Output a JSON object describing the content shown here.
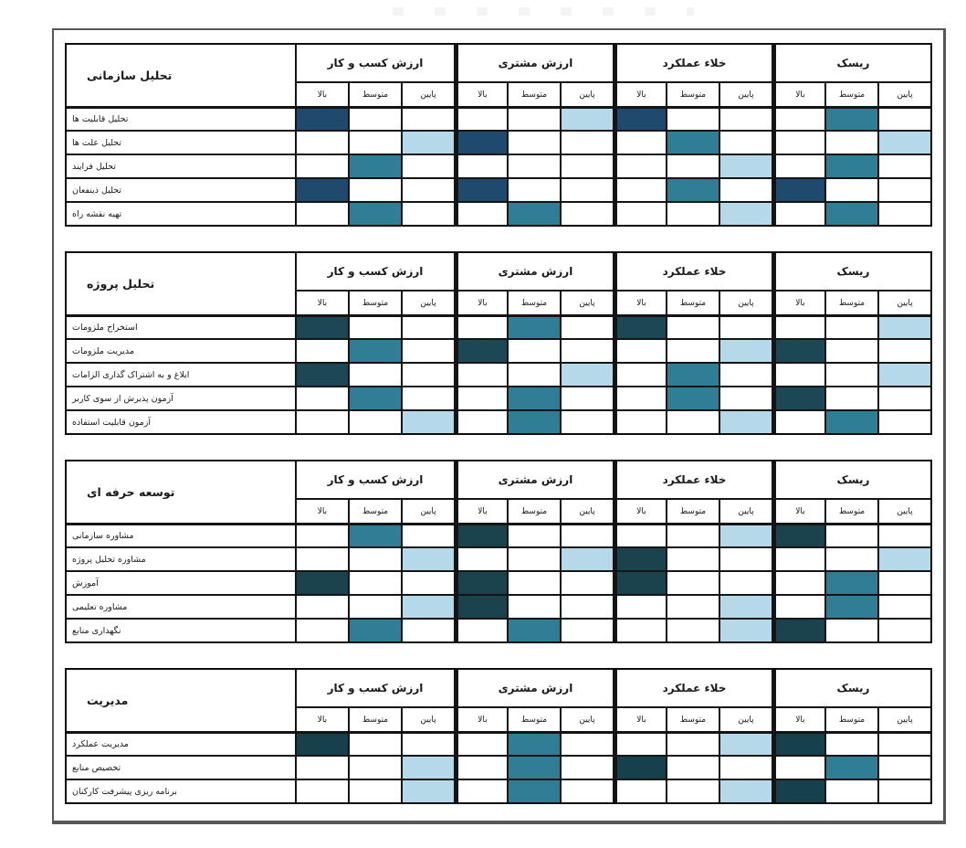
{
  "palette": {
    "medium": "#2f7e96",
    "low": "#b5d9e9",
    "grid": "#141414",
    "frame_border": "#54585d"
  },
  "column_groups": [
    "ارزش کسب و کار",
    "ارزش مشتری",
    "خلاء عملکرد",
    "ریسک"
  ],
  "sub_columns": [
    "بالا",
    "متوسط",
    "پایین"
  ],
  "tables": [
    {
      "title": "تحلیل سازمانی",
      "high_color": "#1f4a6e",
      "rows": [
        {
          "label": "تحلیل قابلیت ها",
          "cells": [
            "h",
            "",
            "",
            "",
            "",
            "l",
            "h",
            "",
            "",
            "",
            "m",
            ""
          ]
        },
        {
          "label": "تحلیل علت ها",
          "cells": [
            "",
            "",
            "l",
            "h",
            "",
            "",
            "",
            "m",
            "",
            "",
            "",
            "l"
          ]
        },
        {
          "label": "تحلیل فرایند",
          "cells": [
            "",
            "m",
            "",
            "",
            "",
            "",
            "",
            "",
            "l",
            "",
            "m",
            ""
          ]
        },
        {
          "label": "تحلیل ذینفعان",
          "cells": [
            "h",
            "",
            "",
            "h",
            "",
            "",
            "",
            "m",
            "",
            "h",
            "",
            ""
          ]
        },
        {
          "label": "تهیه نقشه راه",
          "cells": [
            "",
            "m",
            "",
            "",
            "m",
            "",
            "",
            "",
            "l",
            "",
            "m",
            ""
          ]
        }
      ]
    },
    {
      "title": "تحلیل پروژه",
      "high_color": "#1c4754",
      "rows": [
        {
          "label": "استخراج ملزومات",
          "cells": [
            "h",
            "",
            "",
            "",
            "m",
            "",
            "h",
            "",
            "",
            "",
            "",
            "l"
          ]
        },
        {
          "label": "مدیریت ملزومات",
          "cells": [
            "",
            "m",
            "",
            "h",
            "",
            "",
            "",
            "",
            "l",
            "h",
            "",
            ""
          ]
        },
        {
          "label": "ابلاغ و به اشتراک گذاری الزامات",
          "cells": [
            "h",
            "",
            "",
            "",
            "",
            "l",
            "",
            "m",
            "",
            "",
            "",
            "l"
          ]
        },
        {
          "label": "آزمون پذیرش از سوی کاربر",
          "cells": [
            "",
            "m",
            "",
            "",
            "m",
            "",
            "",
            "m",
            "",
            "h",
            "",
            ""
          ]
        },
        {
          "label": "آزمون قابلیت استفاده",
          "cells": [
            "",
            "",
            "l",
            "",
            "m",
            "",
            "",
            "",
            "l",
            "",
            "m",
            ""
          ]
        }
      ]
    },
    {
      "title": "توسعه حرفه ای",
      "high_color": "#1b434e",
      "rows": [
        {
          "label": "مشاوره سازمانی",
          "cells": [
            "",
            "m",
            "",
            "h",
            "",
            "",
            "",
            "",
            "l",
            "h",
            "",
            ""
          ]
        },
        {
          "label": "مشاوره تحلیل پروژه",
          "cells": [
            "",
            "",
            "l",
            "",
            "",
            "l",
            "h",
            "",
            "",
            "",
            "",
            "l"
          ]
        },
        {
          "label": "آموزش",
          "cells": [
            "h",
            "",
            "",
            "h",
            "",
            "",
            "h",
            "",
            "",
            "",
            "m",
            ""
          ]
        },
        {
          "label": "مشاوره تعلیمی",
          "cells": [
            "",
            "",
            "l",
            "h",
            "",
            "",
            "",
            "",
            "l",
            "",
            "m",
            ""
          ]
        },
        {
          "label": "نگهداری منابع",
          "cells": [
            "",
            "m",
            "",
            "",
            "m",
            "",
            "",
            "",
            "l",
            "h",
            "",
            ""
          ]
        }
      ]
    },
    {
      "title": "مدیریت",
      "high_color": "#17404d",
      "rows": [
        {
          "label": "مدیریت عملکرد",
          "cells": [
            "h",
            "",
            "",
            "",
            "m",
            "",
            "",
            "",
            "l",
            "h",
            "",
            ""
          ]
        },
        {
          "label": "تخصیص منابع",
          "cells": [
            "",
            "",
            "l",
            "",
            "m",
            "",
            "h",
            "",
            "",
            "",
            "m",
            ""
          ]
        },
        {
          "label": "برنامه ریزی پیشرفت کارکنان",
          "cells": [
            "",
            "",
            "l",
            "",
            "m",
            "",
            "",
            "",
            "l",
            "h",
            "",
            ""
          ]
        }
      ]
    }
  ],
  "chart_data": [
    {
      "type": "heatmap",
      "title": "تحلیل سازمانی",
      "columns": [
        "ارزش کسب و کار - بالا",
        "ارزش کسب و کار - متوسط",
        "ارزش کسب و کار - پایین",
        "ارزش مشتری - بالا",
        "ارزش مشتری - متوسط",
        "ارزش مشتری - پایین",
        "خلاء عملکرد - بالا",
        "خلاء عملکرد - متوسط",
        "خلاء عملکرد - پایین",
        "ریسک - بالا",
        "ریسک - متوسط",
        "ریسک - پایین"
      ],
      "rows": [
        "تحلیل قابلیت ها",
        "تحلیل علت ها",
        "تحلیل فرایند",
        "تحلیل ذینفعان",
        "تهیه نقشه راه"
      ],
      "values": [
        [
          3,
          0,
          0,
          0,
          0,
          1,
          3,
          0,
          0,
          0,
          2,
          0
        ],
        [
          0,
          0,
          1,
          3,
          0,
          0,
          0,
          2,
          0,
          0,
          0,
          1
        ],
        [
          0,
          2,
          0,
          0,
          0,
          0,
          0,
          0,
          1,
          0,
          2,
          0
        ],
        [
          3,
          0,
          0,
          3,
          0,
          0,
          0,
          2,
          0,
          3,
          0,
          0
        ],
        [
          0,
          2,
          0,
          0,
          2,
          0,
          0,
          0,
          1,
          0,
          2,
          0
        ]
      ],
      "value_scale": {
        "0": "empty",
        "1": "light",
        "2": "medium",
        "3": "dark"
      }
    },
    {
      "type": "heatmap",
      "title": "تحلیل پروژه",
      "columns": [
        "ارزش کسب و کار - بالا",
        "ارزش کسب و کار - متوسط",
        "ارزش کسب و کار - پایین",
        "ارزش مشتری - بالا",
        "ارزش مشتری - متوسط",
        "ارزش مشتری - پایین",
        "خلاء عملکرد - بالا",
        "خلاء عملکرد - متوسط",
        "خلاء عملکرد - پایین",
        "ریسک - بالا",
        "ریسک - متوسط",
        "ریسک - پایین"
      ],
      "rows": [
        "استخراج ملزومات",
        "مدیریت ملزومات",
        "ابلاغ و به اشتراک گذاری الزامات",
        "آزمون پذیرش از سوی کاربر",
        "آزمون قابلیت استفاده"
      ],
      "values": [
        [
          3,
          0,
          0,
          0,
          2,
          0,
          3,
          0,
          0,
          0,
          0,
          1
        ],
        [
          0,
          2,
          0,
          3,
          0,
          0,
          0,
          0,
          1,
          3,
          0,
          0
        ],
        [
          3,
          0,
          0,
          0,
          0,
          1,
          0,
          2,
          0,
          0,
          0,
          1
        ],
        [
          0,
          2,
          0,
          0,
          2,
          0,
          0,
          2,
          0,
          3,
          0,
          0
        ],
        [
          0,
          0,
          1,
          0,
          2,
          0,
          0,
          0,
          1,
          0,
          2,
          0
        ]
      ],
      "value_scale": {
        "0": "empty",
        "1": "light",
        "2": "medium",
        "3": "dark"
      }
    },
    {
      "type": "heatmap",
      "title": "توسعه حرفه ای",
      "columns": [
        "ارزش کسب و کار - بالا",
        "ارزش کسب و کار - متوسط",
        "ارزش کسب و کار - پایین",
        "ارزش مشتری - بالا",
        "ارزش مشتری - متوسط",
        "ارزش مشتری - پایین",
        "خلاء عملکرد - بالا",
        "خلاء عملکرد - متوسط",
        "خلاء عملکرد - پایین",
        "ریسک - بالا",
        "ریسک - متوسط",
        "ریسک - پایین"
      ],
      "rows": [
        "مشاوره سازمانی",
        "مشاوره تحلیل پروژه",
        "آموزش",
        "مشاوره تعلیمی",
        "نگهداری منابع"
      ],
      "values": [
        [
          0,
          2,
          0,
          3,
          0,
          0,
          0,
          0,
          1,
          3,
          0,
          0
        ],
        [
          0,
          0,
          1,
          0,
          0,
          1,
          3,
          0,
          0,
          0,
          0,
          1
        ],
        [
          3,
          0,
          0,
          3,
          0,
          0,
          3,
          0,
          0,
          0,
          2,
          0
        ],
        [
          0,
          0,
          1,
          3,
          0,
          0,
          0,
          0,
          1,
          0,
          2,
          0
        ],
        [
          0,
          2,
          0,
          0,
          2,
          0,
          0,
          0,
          1,
          3,
          0,
          0
        ]
      ],
      "value_scale": {
        "0": "empty",
        "1": "light",
        "2": "medium",
        "3": "dark"
      }
    },
    {
      "type": "heatmap",
      "title": "مدیریت",
      "columns": [
        "ارزش کسب و کار - بالا",
        "ارزش کسب و کار - متوسط",
        "ارزش کسب و کار - پایین",
        "ارزش مشتری - بالا",
        "ارزش مشتری - متوسط",
        "ارزش مشتری - پایین",
        "خلاء عملکرد - بالا",
        "خلاء عملکرد - متوسط",
        "خلاء عملکرد - پایین",
        "ریسک - بالا",
        "ریسک - متوسط",
        "ریسک - پایین"
      ],
      "rows": [
        "مدیریت عملکرد",
        "تخصیص منابع",
        "برنامه ریزی پیشرفت کارکنان"
      ],
      "values": [
        [
          3,
          0,
          0,
          0,
          2,
          0,
          0,
          0,
          1,
          3,
          0,
          0
        ],
        [
          0,
          0,
          1,
          0,
          2,
          0,
          3,
          0,
          0,
          0,
          2,
          0
        ],
        [
          0,
          0,
          1,
          0,
          2,
          0,
          0,
          0,
          1,
          3,
          0,
          0
        ]
      ],
      "value_scale": {
        "0": "empty",
        "1": "light",
        "2": "medium",
        "3": "dark"
      }
    }
  ]
}
